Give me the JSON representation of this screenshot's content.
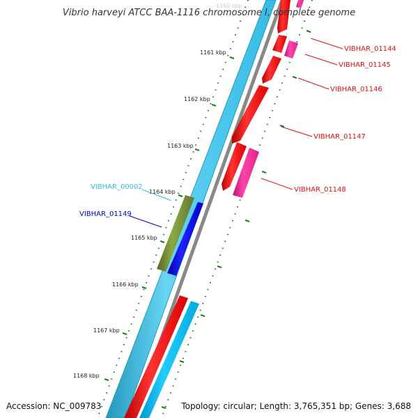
{
  "title": "Vibrio harveyi ATCC BAA-1116 chromosome I, complete genome",
  "footer": {
    "accession": "Accession: NC_009783",
    "topology": "Topology: circular; Length: 3,765,351 bp; Genes: 3,688"
  },
  "ticks": [
    "1160 kbp",
    "1161 kbp",
    "1162 kbp",
    "1163 kbp",
    "1164 kbp",
    "1165 kbp",
    "1166 kbp",
    "1167 kbp",
    "1168 kbp"
  ],
  "genes": [
    {
      "id": "VIBHAR_01144",
      "color": "#dd1111"
    },
    {
      "id": "VIBHAR_01145",
      "color": "#dd1111"
    },
    {
      "id": "VIBHAR_01146",
      "color": "#dd1111"
    },
    {
      "id": "VIBHAR_01147",
      "color": "#dd1111"
    },
    {
      "id": "VIBHAR_01148",
      "color": "#dd1111"
    },
    {
      "id": "VIBHAR_00002",
      "color": "#33bbdd"
    },
    {
      "id": "VIBHAR_01149",
      "color": "#0000cc"
    }
  ],
  "colors": {
    "backbone": "#55ccee",
    "backbone_edge": "#2299bb",
    "axis": "#888888",
    "cds_forward": "#ee1111",
    "rna": "#ee2299",
    "cds_reverse": "#1111dd",
    "gene_green": "#779933",
    "tick_mark": "#227722"
  }
}
